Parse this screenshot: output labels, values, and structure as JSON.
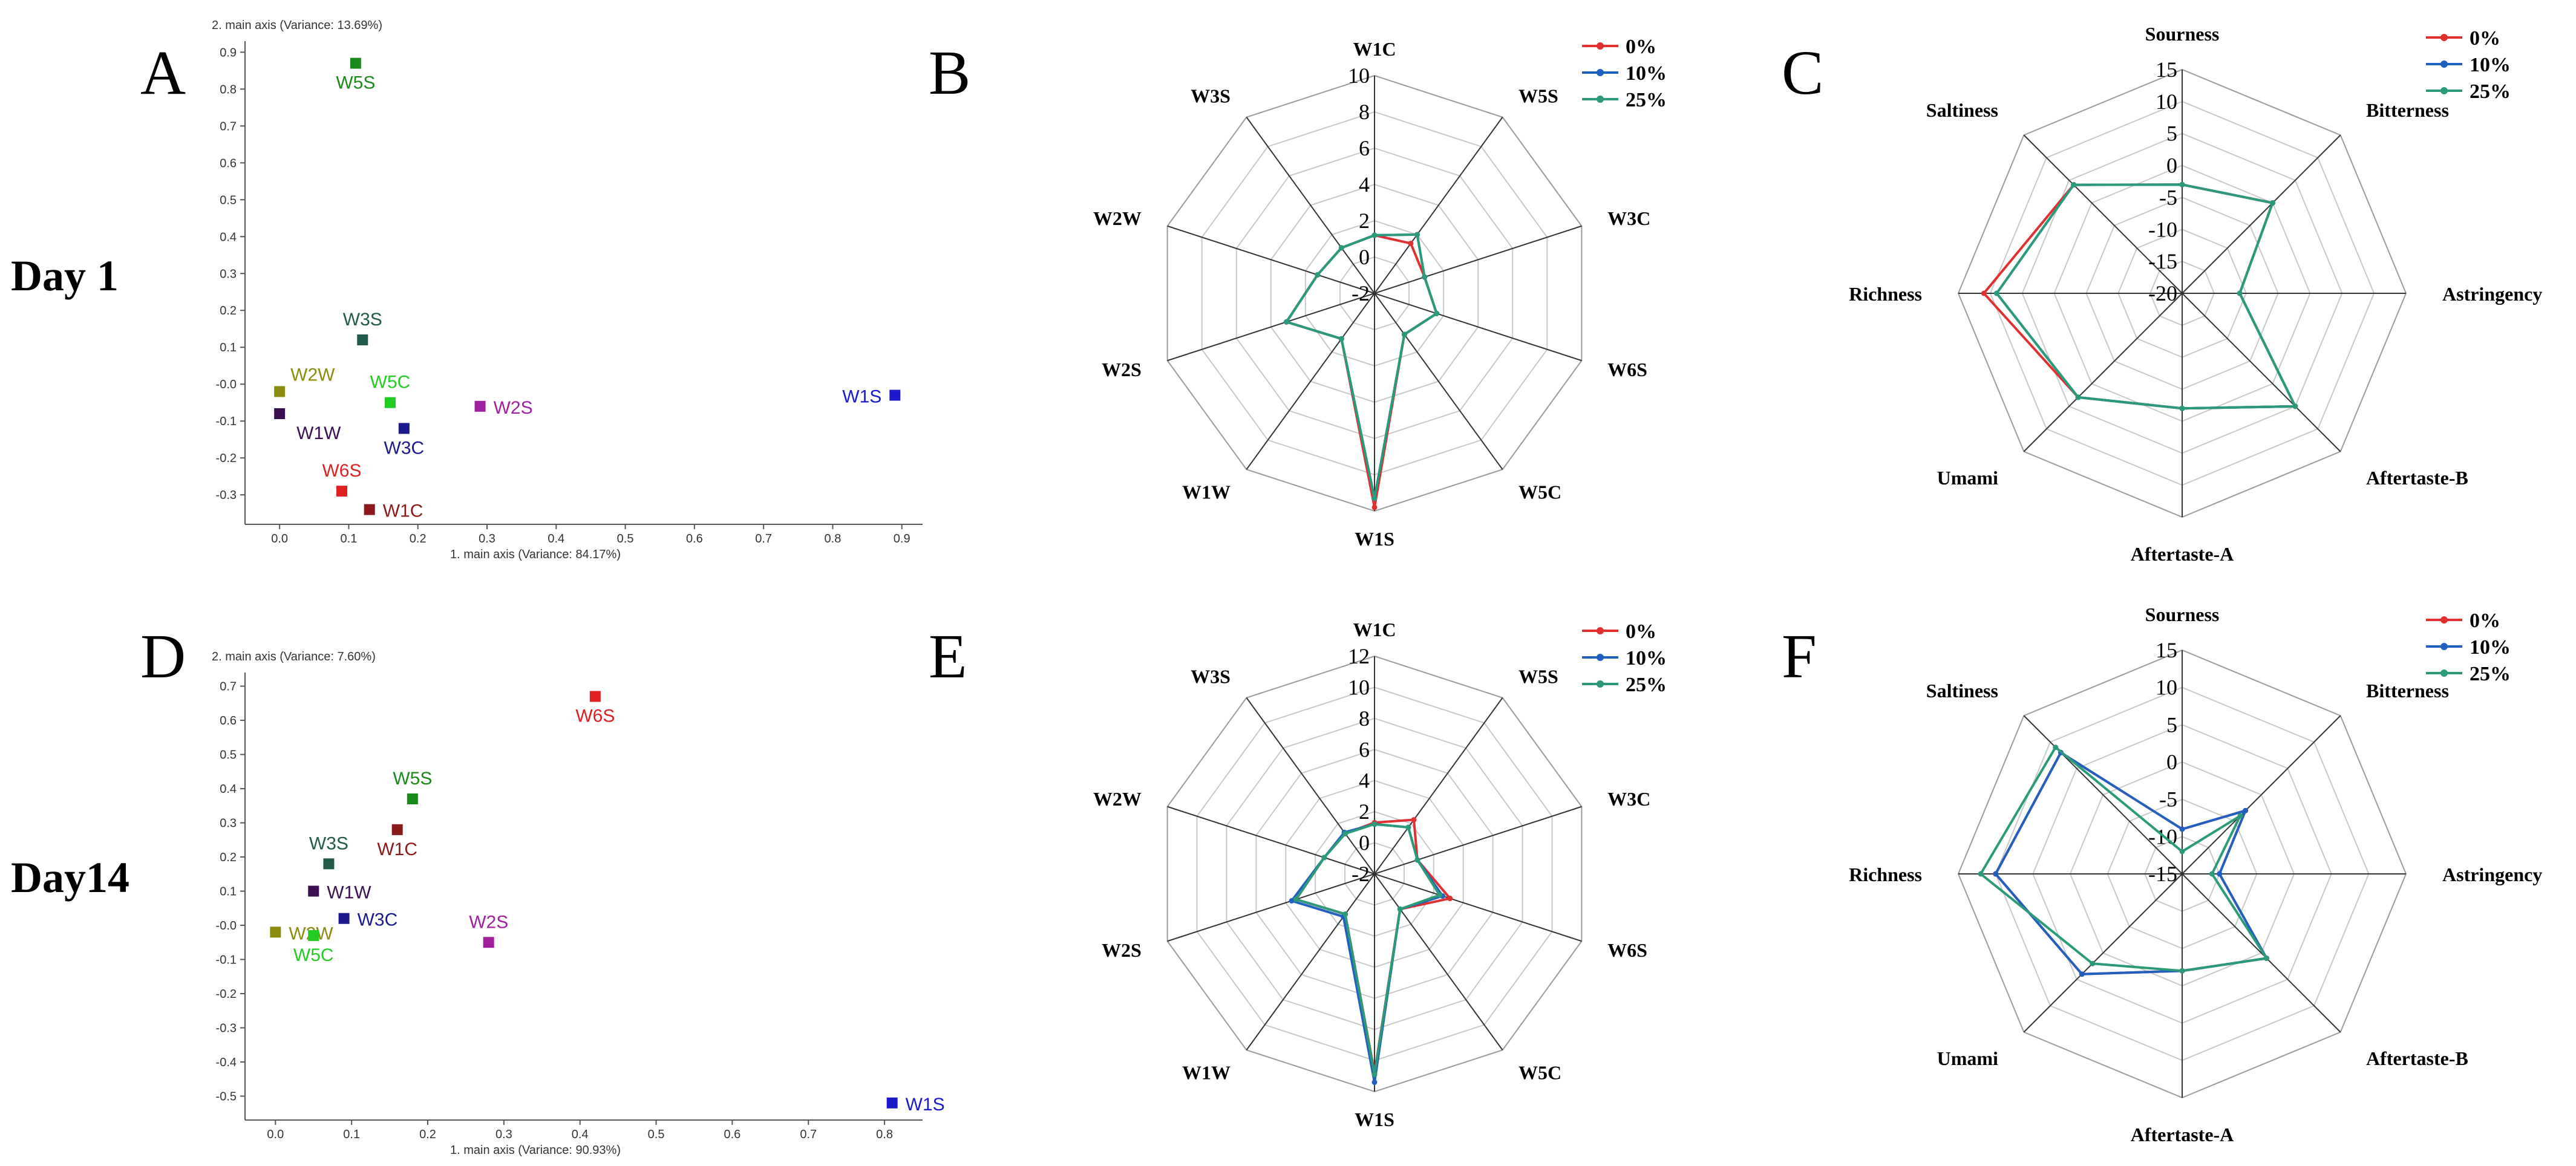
{
  "row_labels": [
    "Day 1",
    "Day14"
  ],
  "chart_data": [
    {
      "panel": "A",
      "type": "scatter",
      "xlabel": "1. main axis (Variance: 84.17%)",
      "ylabel": "2. main axis (Variance: 13.69%)",
      "xlim": [
        -0.05,
        0.93
      ],
      "ylim": [
        -0.38,
        0.93
      ],
      "xticks": [
        0.0,
        0.1,
        0.2,
        0.3,
        0.4,
        0.5,
        0.6,
        0.7,
        0.8,
        0.9
      ],
      "xtick_labels": [
        "0.0",
        "0.1",
        "0.2",
        "0.3",
        "0.4",
        "0.5",
        "0.6",
        "0.7",
        "0.8",
        "0.9"
      ],
      "yticks": [
        -0.3,
        -0.2,
        -0.1,
        0.0,
        0.1,
        0.2,
        0.3,
        0.4,
        0.5,
        0.6,
        0.7,
        0.8,
        0.9
      ],
      "ytick_labels": [
        "-0.3",
        "-0.2",
        "-0.1",
        "-0.0",
        "0.1",
        "0.2",
        "0.3",
        "0.4",
        "0.5",
        "0.6",
        "0.7",
        "0.8",
        "0.9"
      ],
      "points": [
        {
          "label": "W5S",
          "x": 0.11,
          "y": 0.87,
          "color": "#1a8a1a",
          "label_pos": "below"
        },
        {
          "label": "W3S",
          "x": 0.12,
          "y": 0.12,
          "color": "#1f5a4a",
          "label_pos": "above"
        },
        {
          "label": "W2W",
          "x": 0.0,
          "y": -0.02,
          "color": "#8b8b10",
          "label_pos": "right-above"
        },
        {
          "label": "W5C",
          "x": 0.16,
          "y": -0.05,
          "color": "#22cc22",
          "label_pos": "above"
        },
        {
          "label": "W1W",
          "x": 0.0,
          "y": -0.08,
          "color": "#3a1050",
          "label_pos": "right-below"
        },
        {
          "label": "W3C",
          "x": 0.18,
          "y": -0.12,
          "color": "#1a1a8c",
          "label_pos": "below"
        },
        {
          "label": "W2S",
          "x": 0.29,
          "y": -0.06,
          "color": "#a020a0",
          "label_pos": "right"
        },
        {
          "label": "W1S",
          "x": 0.89,
          "y": -0.03,
          "color": "#1a1acc",
          "label_pos": "left"
        },
        {
          "label": "W6S",
          "x": 0.09,
          "y": -0.29,
          "color": "#e02020",
          "label_pos": "above"
        },
        {
          "label": "W1C",
          "x": 0.13,
          "y": -0.34,
          "color": "#8b1a1a",
          "label_pos": "right"
        }
      ]
    },
    {
      "panel": "D",
      "type": "scatter",
      "xlabel": "1. main axis (Variance: 90.93%)",
      "ylabel": "2. main axis (Variance: 7.60%)",
      "xlim": [
        -0.04,
        0.85
      ],
      "ylim": [
        -0.57,
        0.74
      ],
      "xticks": [
        0.0,
        0.1,
        0.2,
        0.3,
        0.4,
        0.5,
        0.6,
        0.7,
        0.8
      ],
      "xtick_labels": [
        "0.0",
        "0.1",
        "0.2",
        "0.3",
        "0.4",
        "0.5",
        "0.6",
        "0.7",
        "0.8"
      ],
      "yticks": [
        -0.5,
        -0.4,
        -0.3,
        -0.2,
        -0.1,
        0.0,
        0.1,
        0.2,
        0.3,
        0.4,
        0.5,
        0.6,
        0.7
      ],
      "ytick_labels": [
        "-0.5",
        "-0.4",
        "-0.3",
        "-0.2",
        "-0.1",
        "-0.0",
        "0.1",
        "0.2",
        "0.3",
        "0.4",
        "0.5",
        "0.6",
        "0.7"
      ],
      "points": [
        {
          "label": "W6S",
          "x": 0.42,
          "y": 0.67,
          "color": "#e02020",
          "label_pos": "below"
        },
        {
          "label": "W5S",
          "x": 0.18,
          "y": 0.37,
          "color": "#1a8a1a",
          "label_pos": "above"
        },
        {
          "label": "W1C",
          "x": 0.16,
          "y": 0.28,
          "color": "#8b1a1a",
          "label_pos": "below"
        },
        {
          "label": "W3S",
          "x": 0.07,
          "y": 0.18,
          "color": "#1f5a4a",
          "label_pos": "above"
        },
        {
          "label": "W1W",
          "x": 0.05,
          "y": 0.1,
          "color": "#3a1050",
          "label_pos": "right"
        },
        {
          "label": "W3C",
          "x": 0.09,
          "y": 0.02,
          "color": "#1a1a8c",
          "label_pos": "right"
        },
        {
          "label": "W2W",
          "x": 0.0,
          "y": -0.02,
          "color": "#8b8b10",
          "label_pos": "right"
        },
        {
          "label": "W5C",
          "x": 0.05,
          "y": -0.03,
          "color": "#22cc22",
          "label_pos": "below"
        },
        {
          "label": "W2S",
          "x": 0.28,
          "y": -0.05,
          "color": "#a020a0",
          "label_pos": "above"
        },
        {
          "label": "W1S",
          "x": 0.81,
          "y": -0.52,
          "color": "#1a1acc",
          "label_pos": "right"
        }
      ]
    },
    {
      "panel": "B",
      "type": "radar",
      "axes": [
        "W1C",
        "W5S",
        "W3C",
        "W6S",
        "W5C",
        "W1S",
        "W1W",
        "W2S",
        "W2W",
        "W3S"
      ],
      "rmin": -2,
      "rmax": 10,
      "ticks": [
        -2,
        0,
        2,
        4,
        6,
        8,
        10
      ],
      "tick_labels": [
        "-2",
        "0",
        "2",
        "4",
        "6",
        "8",
        "10"
      ],
      "series": [
        {
          "name": "0%",
          "color": "#e03030",
          "values": [
            1.2,
            1.4,
            0.9,
            1.6,
            0.8,
            9.8,
            1.1,
            3.1,
            1.3,
            1.1
          ]
        },
        {
          "name": "10%",
          "color": "#2060c0",
          "values": [
            1.2,
            2.0,
            0.9,
            1.6,
            0.8,
            9.3,
            1.1,
            3.1,
            1.3,
            1.1
          ]
        },
        {
          "name": "25%",
          "color": "#2a9a7a",
          "values": [
            1.2,
            2.0,
            0.9,
            1.6,
            0.8,
            9.3,
            1.1,
            3.1,
            1.3,
            1.1
          ]
        }
      ],
      "legend_position": "top-right"
    },
    {
      "panel": "E",
      "type": "radar",
      "axes": [
        "W1C",
        "W5S",
        "W3C",
        "W6S",
        "W5C",
        "W1S",
        "W1W",
        "W2S",
        "W2W",
        "W3S"
      ],
      "rmin": -2,
      "rmax": 12,
      "ticks": [
        -2,
        0,
        2,
        4,
        6,
        8,
        10,
        12
      ],
      "tick_labels": [
        "-2",
        "0",
        "2",
        "4",
        "6",
        "8",
        "10",
        "12"
      ],
      "series": [
        {
          "name": "0%",
          "color": "#e03030",
          "values": [
            1.3,
            2.3,
            0.9,
            3.1,
            0.8,
            10.8,
            1.2,
            3.3,
            1.4,
            1.2
          ]
        },
        {
          "name": "10%",
          "color": "#2060c0",
          "values": [
            1.2,
            1.7,
            0.9,
            2.6,
            0.8,
            11.4,
            1.4,
            3.6,
            1.4,
            1.3
          ]
        },
        {
          "name": "25%",
          "color": "#2a9a7a",
          "values": [
            1.2,
            1.7,
            0.9,
            2.4,
            0.8,
            10.9,
            1.2,
            3.3,
            1.4,
            1.2
          ]
        }
      ],
      "legend_position": "top-right"
    },
    {
      "panel": "C",
      "type": "radar",
      "axes": [
        "Sourness",
        "Bitterness",
        "Astringency",
        "Aftertaste-B",
        "Aftertaste-A",
        "Umami",
        "Richness",
        "Saltiness"
      ],
      "rmin": -20,
      "rmax": 15,
      "ticks": [
        -20,
        -15,
        -10,
        -5,
        0,
        5,
        10,
        15
      ],
      "tick_labels": [
        "-20",
        "-15",
        "-10",
        "-5",
        "0",
        "5",
        "10",
        "15"
      ],
      "series": [
        {
          "name": "0%",
          "color": "#e03030",
          "values": [
            -3,
            0,
            -11,
            5,
            -2,
            3,
            11,
            4
          ]
        },
        {
          "name": "10%",
          "color": "#2060c0",
          "values": [
            -3,
            0,
            -11,
            5,
            -2,
            3,
            9,
            4
          ]
        },
        {
          "name": "25%",
          "color": "#2a9a7a",
          "values": [
            -3,
            0,
            -11,
            5,
            -2,
            3,
            9,
            4
          ]
        }
      ],
      "legend_position": "top-right"
    },
    {
      "panel": "F",
      "type": "radar",
      "axes": [
        "Sourness",
        "Bitterness",
        "Astringency",
        "Aftertaste-B",
        "Aftertaste-A",
        "Umami",
        "Richness",
        "Saltiness"
      ],
      "rmin": -15,
      "rmax": 15,
      "ticks": [
        -15,
        -10,
        -5,
        0,
        5,
        10,
        15
      ],
      "tick_labels": [
        "-15",
        "-10",
        "-5",
        "0",
        "5",
        "10",
        "15"
      ],
      "series": [
        {
          "name": "0%",
          "color": "#e03030",
          "values": [
            -9,
            -3,
            -10,
            1,
            -2,
            4,
            10,
            8
          ]
        },
        {
          "name": "10%",
          "color": "#2060c0",
          "values": [
            -9,
            -3,
            -10,
            1,
            -2,
            4,
            10,
            8
          ]
        },
        {
          "name": "25%",
          "color": "#2a9a7a",
          "values": [
            -12,
            -4,
            -11,
            1,
            -2,
            2,
            12,
            9
          ]
        }
      ],
      "legend_position": "top-right"
    }
  ]
}
